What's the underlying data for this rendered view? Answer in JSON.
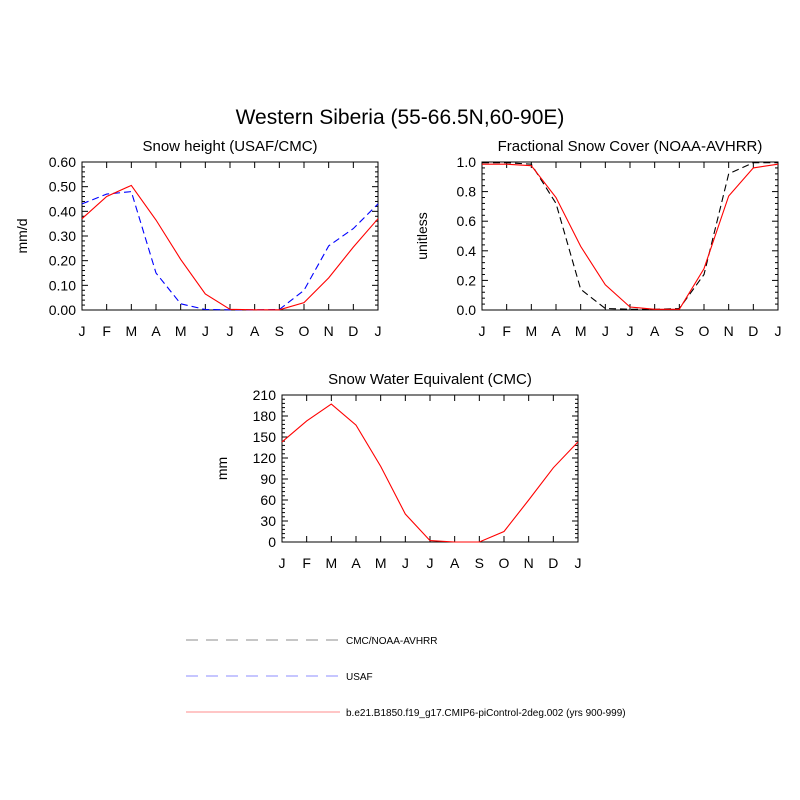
{
  "figure_title": "Western Siberia (55-66.5N,60-90E)",
  "legend": [
    {
      "label": "CMC/NOAA-AVHRR",
      "color": "#000000",
      "dash": "dashed"
    },
    {
      "label": "USAF",
      "color": "#0000ff",
      "dash": "dashed"
    },
    {
      "label": "b.e21.B1850.f19_g17.CMIP6-piControl-2deg.002 (yrs 900-999)",
      "color": "#ff0000",
      "dash": "solid"
    }
  ],
  "chart_data": [
    {
      "type": "line",
      "title": "Snow height (USAF/CMC)",
      "xlabel": "",
      "ylabel": "mm/d",
      "ylim": [
        0,
        0.6
      ],
      "yticks": [
        "0.00",
        "0.10",
        "0.20",
        "0.30",
        "0.40",
        "0.50",
        "0.60"
      ],
      "categories": [
        "J",
        "F",
        "M",
        "A",
        "M",
        "J",
        "J",
        "A",
        "S",
        "O",
        "N",
        "D",
        "J"
      ],
      "series": [
        {
          "name": "CMC/NOAA-AVHRR",
          "color": "#000000",
          "dash": "dashed",
          "values": [
            0,
            0,
            0,
            0,
            0,
            0,
            0,
            0,
            0,
            0,
            0,
            0,
            0
          ]
        },
        {
          "name": "USAF",
          "color": "#0000ff",
          "dash": "dashed",
          "values": [
            0.43,
            0.47,
            0.48,
            0.15,
            0.025,
            0.002,
            0.001,
            0.001,
            0.002,
            0.08,
            0.26,
            0.33,
            0.43
          ]
        },
        {
          "name": "b.e21.B1850.f19_g17.CMIP6-piControl-2deg.002 (yrs 900-999)",
          "color": "#ff0000",
          "dash": "solid",
          "values": [
            0.37,
            0.46,
            0.505,
            0.365,
            0.205,
            0.065,
            0.003,
            0.001,
            0.001,
            0.03,
            0.13,
            0.255,
            0.37
          ]
        }
      ]
    },
    {
      "type": "line",
      "title": "Fractional Snow Cover (NOAA-AVHRR)",
      "xlabel": "",
      "ylabel": "unitless",
      "ylim": [
        0,
        1.0
      ],
      "yticks": [
        "0.0",
        "0.2",
        "0.4",
        "0.6",
        "0.8",
        "1.0"
      ],
      "categories": [
        "J",
        "F",
        "M",
        "A",
        "M",
        "J",
        "J",
        "A",
        "S",
        "O",
        "N",
        "D",
        "J"
      ],
      "series": [
        {
          "name": "CMC/NOAA-AVHRR",
          "color": "#000000",
          "dash": "dashed",
          "values": [
            0.995,
            0.995,
            0.985,
            0.72,
            0.14,
            0.01,
            0.005,
            0.005,
            0.01,
            0.24,
            0.92,
            0.995,
            0.995
          ]
        },
        {
          "name": "b.e21.B1850.f19_g17.CMIP6-piControl-2deg.002 (yrs 900-999)",
          "color": "#ff0000",
          "dash": "solid",
          "values": [
            0.985,
            0.985,
            0.975,
            0.76,
            0.43,
            0.17,
            0.02,
            0.005,
            0.005,
            0.28,
            0.77,
            0.96,
            0.985
          ]
        }
      ]
    },
    {
      "type": "line",
      "title": "Snow Water Equivalent (CMC)",
      "xlabel": "",
      "ylabel": "mm",
      "ylim": [
        0,
        210
      ],
      "yticks": [
        "0",
        "30",
        "60",
        "90",
        "120",
        "150",
        "180",
        "210"
      ],
      "categories": [
        "J",
        "F",
        "M",
        "A",
        "M",
        "J",
        "J",
        "A",
        "S",
        "O",
        "N",
        "D",
        "J"
      ],
      "series": [
        {
          "name": "CMC/NOAA-AVHRR",
          "color": "#000000",
          "dash": "dashed",
          "values": [
            0,
            0,
            0,
            0,
            0,
            0,
            0,
            0,
            0,
            0,
            0,
            0,
            0
          ]
        },
        {
          "name": "b.e21.B1850.f19_g17.CMIP6-piControl-2deg.002 (yrs 900-999)",
          "color": "#ff0000",
          "dash": "solid",
          "values": [
            143,
            173,
            197,
            167,
            108,
            40,
            2,
            0,
            0,
            15,
            60,
            106,
            143
          ]
        }
      ]
    }
  ]
}
